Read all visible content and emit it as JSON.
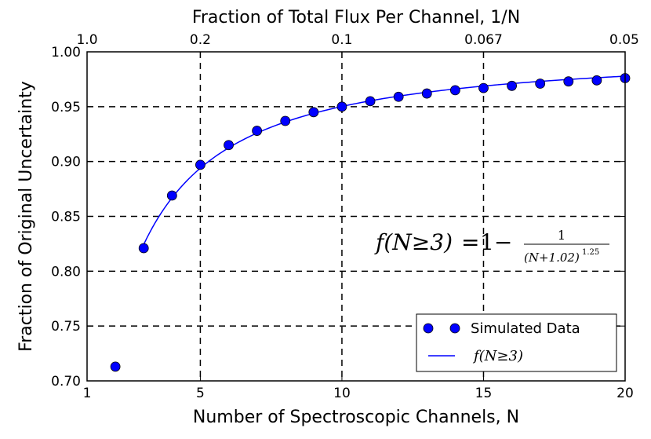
{
  "chart_data": {
    "type": "scatter",
    "xlabel": "Number of Spectroscopic Channels, N",
    "ylabel": "Fraction of Original Uncertainty",
    "top_xlabel": "Fraction of Total Flux Per Channel, 1/N",
    "xlim": [
      1,
      20
    ],
    "ylim": [
      0.7,
      1.0
    ],
    "x_ticks": [
      1,
      5,
      10,
      15,
      20
    ],
    "x_tick_labels": [
      "1",
      "5",
      "10",
      "15",
      "20"
    ],
    "y_ticks": [
      0.7,
      0.75,
      0.8,
      0.85,
      0.9,
      0.95,
      1.0
    ],
    "y_tick_labels": [
      "0.70",
      "0.75",
      "0.80",
      "0.85",
      "0.90",
      "0.95",
      "1.00"
    ],
    "top_ticks": [
      1,
      5,
      10,
      15,
      20
    ],
    "top_tick_labels": [
      "1.0",
      "0.2",
      "0.1",
      "0.067",
      "0.05"
    ],
    "grid": "dashed vertical at 5, 10, 15 and horizontal at major y ticks",
    "legend_position": "lower-right",
    "series": [
      {
        "name": "Simulated Data",
        "kind": "markers",
        "color": "#0000ff",
        "x": [
          2,
          3,
          4,
          5,
          6,
          7,
          8,
          9,
          10,
          11,
          12,
          13,
          14,
          15,
          16,
          17,
          18,
          19,
          20
        ],
        "y": [
          0.713,
          0.821,
          0.869,
          0.897,
          0.915,
          0.928,
          0.937,
          0.945,
          0.95,
          0.955,
          0.959,
          0.962,
          0.965,
          0.967,
          0.969,
          0.971,
          0.973,
          0.974,
          0.976
        ]
      },
      {
        "name": "f(N≥3)",
        "kind": "line",
        "color": "#0000ff",
        "formula": "1 - 1/(N+1.02)^1.25",
        "x_start": 3,
        "x_end": 20
      }
    ],
    "annotation": {
      "lhs": "f(N≥3)",
      "equals": "=",
      "one_minus": "1−",
      "numerator": "1",
      "denominator": "(N+1.02)",
      "exponent": "1.25"
    }
  }
}
